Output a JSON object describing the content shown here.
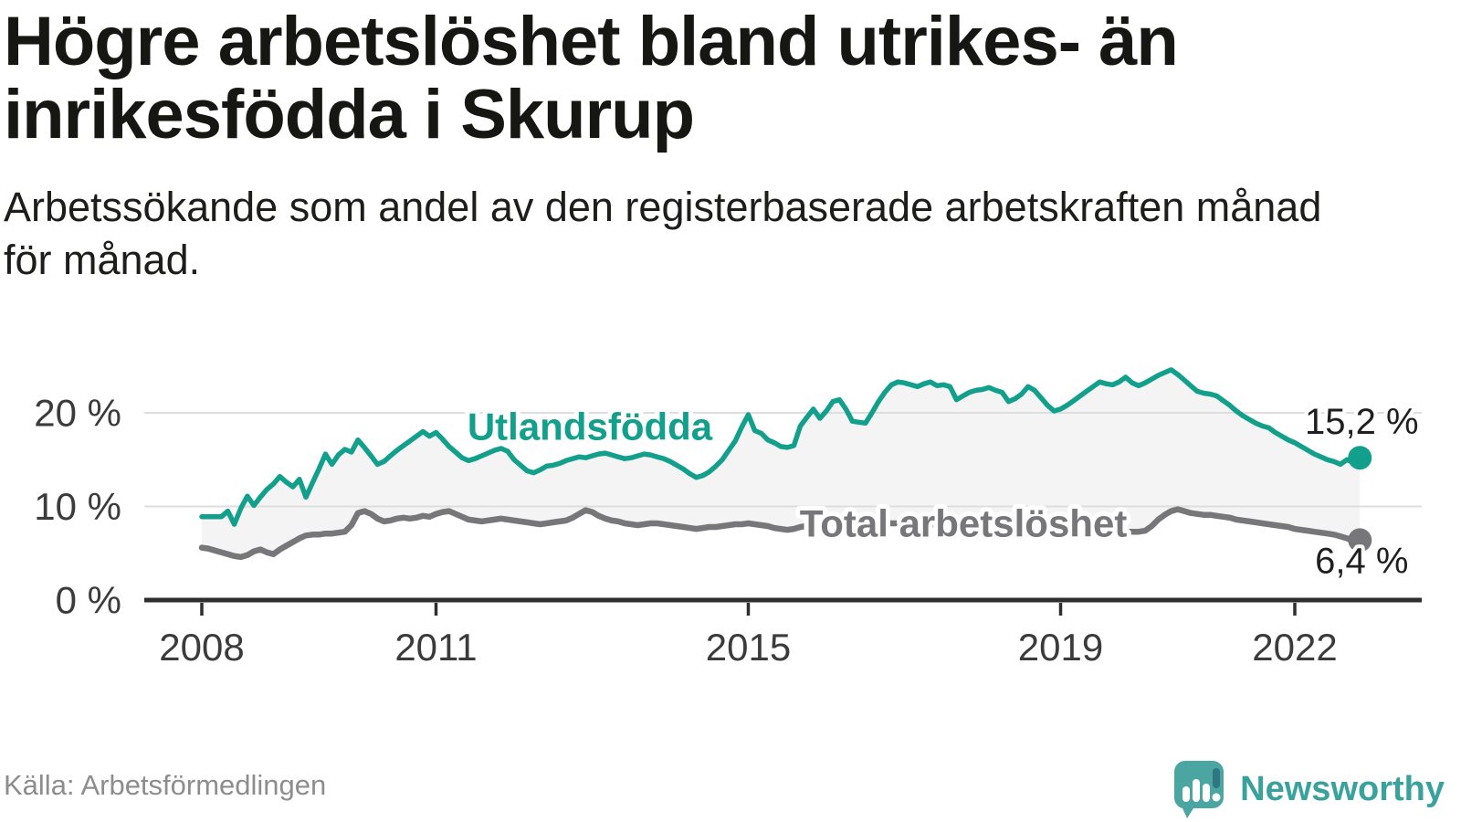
{
  "title": {
    "line1": "Högre arbetslöshet bland utrikes- än",
    "line2": "inrikesfödda i Skurup"
  },
  "subtitle": {
    "line1": "Arbetssökande som andel av den registerbaserade arbetskraften månad",
    "line2": "för månad."
  },
  "source": "Källa: Arbetsförmedlingen",
  "branding": {
    "name": "Newsworthy",
    "bubble_color": "#4ba5a0",
    "text_color": "#3aa29c"
  },
  "colors": {
    "band_fill": "#f4f4f4",
    "gridline": "#dedede",
    "axis": "#2e2e2e",
    "tick_label": "#3b3b3b",
    "title_text": "#161613",
    "source_text": "#8d8d8d"
  },
  "chart_data": {
    "type": "line",
    "title": "Högre arbetslöshet bland utrikes- än inrikesfödda i Skurup",
    "subtitle": "Arbetssökande som andel av den registerbaserade arbetskraften månad för månad.",
    "unit": "%",
    "x_axis": {
      "ticks": [
        2008,
        2011,
        2015,
        2019,
        2022
      ],
      "start": "2008-01",
      "end": "2022-11",
      "grid": false
    },
    "y_axis": {
      "ticks": [
        {
          "value": 0,
          "label": "0 %"
        },
        {
          "value": 10,
          "label": "10 %"
        },
        {
          "value": 20,
          "label": "20 %"
        }
      ],
      "range": [
        0,
        26
      ],
      "grid": true
    },
    "band_between_series": true,
    "series": [
      {
        "id": "utlandsfodda",
        "label": "Utlandsfödda",
        "color": "#12a08c",
        "end_value": 15.2,
        "end_label": "15,2 %",
        "start_year": 2008,
        "frequency": "monthly",
        "values": [
          8.9,
          8.9,
          8.9,
          8.9,
          9.5,
          8.1,
          9.8,
          11.1,
          10.1,
          11.0,
          11.8,
          12.4,
          13.2,
          12.6,
          12.1,
          12.9,
          11.0,
          12.5,
          14.0,
          15.6,
          14.5,
          15.5,
          16.1,
          15.8,
          17.1,
          16.3,
          15.4,
          14.5,
          14.8,
          15.4,
          16.0,
          16.5,
          17.0,
          17.5,
          18.0,
          17.5,
          17.9,
          17.2,
          16.4,
          15.8,
          15.2,
          14.9,
          15.1,
          15.4,
          15.7,
          16.0,
          16.2,
          15.9,
          15.0,
          14.4,
          13.8,
          13.6,
          13.9,
          14.3,
          14.4,
          14.6,
          14.9,
          15.1,
          15.3,
          15.2,
          15.4,
          15.6,
          15.7,
          15.5,
          15.3,
          15.1,
          15.2,
          15.4,
          15.6,
          15.5,
          15.3,
          15.1,
          14.8,
          14.4,
          14.0,
          13.5,
          13.1,
          13.3,
          13.7,
          14.3,
          15.0,
          16.0,
          17.0,
          18.5,
          19.8,
          18.1,
          17.8,
          17.1,
          16.8,
          16.4,
          16.3,
          16.5,
          18.6,
          19.5,
          20.4,
          19.4,
          20.2,
          21.2,
          21.4,
          20.4,
          19.1,
          19.0,
          18.9,
          20.0,
          21.2,
          22.2,
          23.0,
          23.3,
          23.2,
          23.0,
          22.8,
          23.1,
          23.3,
          22.9,
          23.0,
          22.8,
          21.4,
          21.8,
          22.2,
          22.4,
          22.5,
          22.7,
          22.4,
          22.2,
          21.2,
          21.5,
          22.0,
          22.8,
          22.4,
          21.6,
          20.8,
          20.2,
          20.4,
          20.8,
          21.3,
          21.8,
          22.3,
          22.8,
          23.3,
          23.1,
          23.0,
          23.3,
          23.8,
          23.2,
          22.9,
          23.2,
          23.6,
          24.0,
          24.3,
          24.6,
          24.1,
          23.5,
          22.9,
          22.3,
          22.1,
          22.0,
          21.8,
          21.3,
          20.8,
          20.2,
          19.7,
          19.3,
          18.9,
          18.6,
          18.4,
          17.9,
          17.5,
          17.1,
          16.8,
          16.4,
          16.0,
          15.6,
          15.3,
          15.0,
          14.8,
          14.5,
          15.0,
          14.7,
          15.2
        ]
      },
      {
        "id": "total",
        "label": "Total arbetslöshet",
        "color": "#77777a",
        "end_value": 6.4,
        "end_label": "6,4 %",
        "start_year": 2008,
        "frequency": "monthly",
        "values": [
          5.6,
          5.5,
          5.3,
          5.1,
          4.9,
          4.7,
          4.6,
          4.8,
          5.2,
          5.4,
          5.1,
          4.9,
          5.4,
          5.8,
          6.2,
          6.6,
          6.9,
          7.0,
          7.0,
          7.1,
          7.1,
          7.2,
          7.3,
          8.0,
          9.3,
          9.5,
          9.2,
          8.7,
          8.4,
          8.5,
          8.7,
          8.8,
          8.7,
          8.8,
          9.0,
          8.9,
          9.2,
          9.4,
          9.5,
          9.2,
          8.9,
          8.6,
          8.5,
          8.4,
          8.5,
          8.6,
          8.7,
          8.6,
          8.5,
          8.4,
          8.3,
          8.2,
          8.1,
          8.2,
          8.3,
          8.4,
          8.5,
          8.8,
          9.2,
          9.6,
          9.4,
          9.0,
          8.7,
          8.5,
          8.4,
          8.2,
          8.1,
          8.0,
          8.1,
          8.2,
          8.2,
          8.1,
          8.0,
          7.9,
          7.8,
          7.7,
          7.6,
          7.7,
          7.8,
          7.8,
          7.9,
          8.0,
          8.1,
          8.1,
          8.2,
          8.1,
          8.0,
          7.9,
          7.7,
          7.6,
          7.5,
          7.6,
          7.8,
          7.9,
          8.0,
          8.0,
          8.1,
          8.2,
          8.3,
          8.4,
          8.3,
          8.2,
          8.1,
          8.2,
          8.3,
          8.3,
          8.2,
          8.2,
          8.1,
          8.2,
          8.3,
          8.2,
          8.1,
          8.0,
          7.9,
          7.9,
          8.0,
          8.0,
          7.9,
          7.8,
          7.8,
          7.9,
          7.8,
          7.7,
          7.6,
          7.5,
          7.5,
          7.6,
          7.5,
          7.4,
          7.3,
          7.2,
          7.2,
          7.3,
          7.2,
          7.1,
          7.0,
          7.0,
          7.1,
          7.1,
          7.2,
          7.2,
          7.3,
          7.3,
          7.3,
          7.4,
          7.9,
          8.6,
          9.1,
          9.5,
          9.7,
          9.5,
          9.3,
          9.2,
          9.1,
          9.1,
          9.0,
          8.9,
          8.8,
          8.6,
          8.5,
          8.4,
          8.3,
          8.2,
          8.1,
          8.0,
          7.9,
          7.8,
          7.6,
          7.5,
          7.4,
          7.3,
          7.2,
          7.1,
          7.0,
          6.8,
          6.6,
          6.3,
          6.4
        ]
      }
    ]
  }
}
